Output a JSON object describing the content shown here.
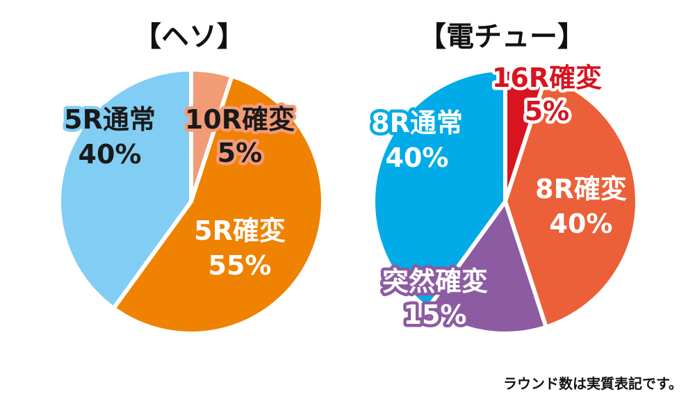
{
  "chart_data": [
    {
      "type": "pie",
      "title": "【ヘソ】",
      "slices": [
        {
          "name": "10R確変",
          "value": 5,
          "label_percent": "5%",
          "color": "#F29B77",
          "text_color": "#1a1a1a",
          "outline_color": "#F29B77"
        },
        {
          "name": "5R確変",
          "value": 55,
          "label_percent": "55%",
          "color": "#EF8200",
          "text_color": "#ffffff",
          "outline_color": "#EF8200"
        },
        {
          "name": "5R通常",
          "value": 40,
          "label_percent": "40%",
          "color": "#82CDF3",
          "text_color": "#1a1a1a",
          "outline_color": "#82CDF3"
        }
      ],
      "start": "12 o'clock",
      "direction": "clockwise"
    },
    {
      "type": "pie",
      "title": "【電チュー】",
      "slices": [
        {
          "name": "16R確変",
          "value": 5,
          "label_percent": "5%",
          "color": "#D7141F",
          "text_color": "#D7141F",
          "outline_color": "#ffffff"
        },
        {
          "name": "8R確変",
          "value": 40,
          "label_percent": "40%",
          "color": "#EB6039",
          "text_color": "#ffffff",
          "outline_color": "#EB6039"
        },
        {
          "name": "突然確変",
          "value": 15,
          "label_percent": "15%",
          "color": "#8C5BA2",
          "text_color": "#ffffff",
          "outline_color": "#8C5BA2"
        },
        {
          "name": "8R通常",
          "value": 40,
          "label_percent": "40%",
          "color": "#00ABE7",
          "text_color": "#ffffff",
          "outline_color": "#00ABE7"
        }
      ],
      "start": "12 o'clock",
      "direction": "clockwise"
    }
  ],
  "footnote": "ラウンド数は実質表記です。"
}
